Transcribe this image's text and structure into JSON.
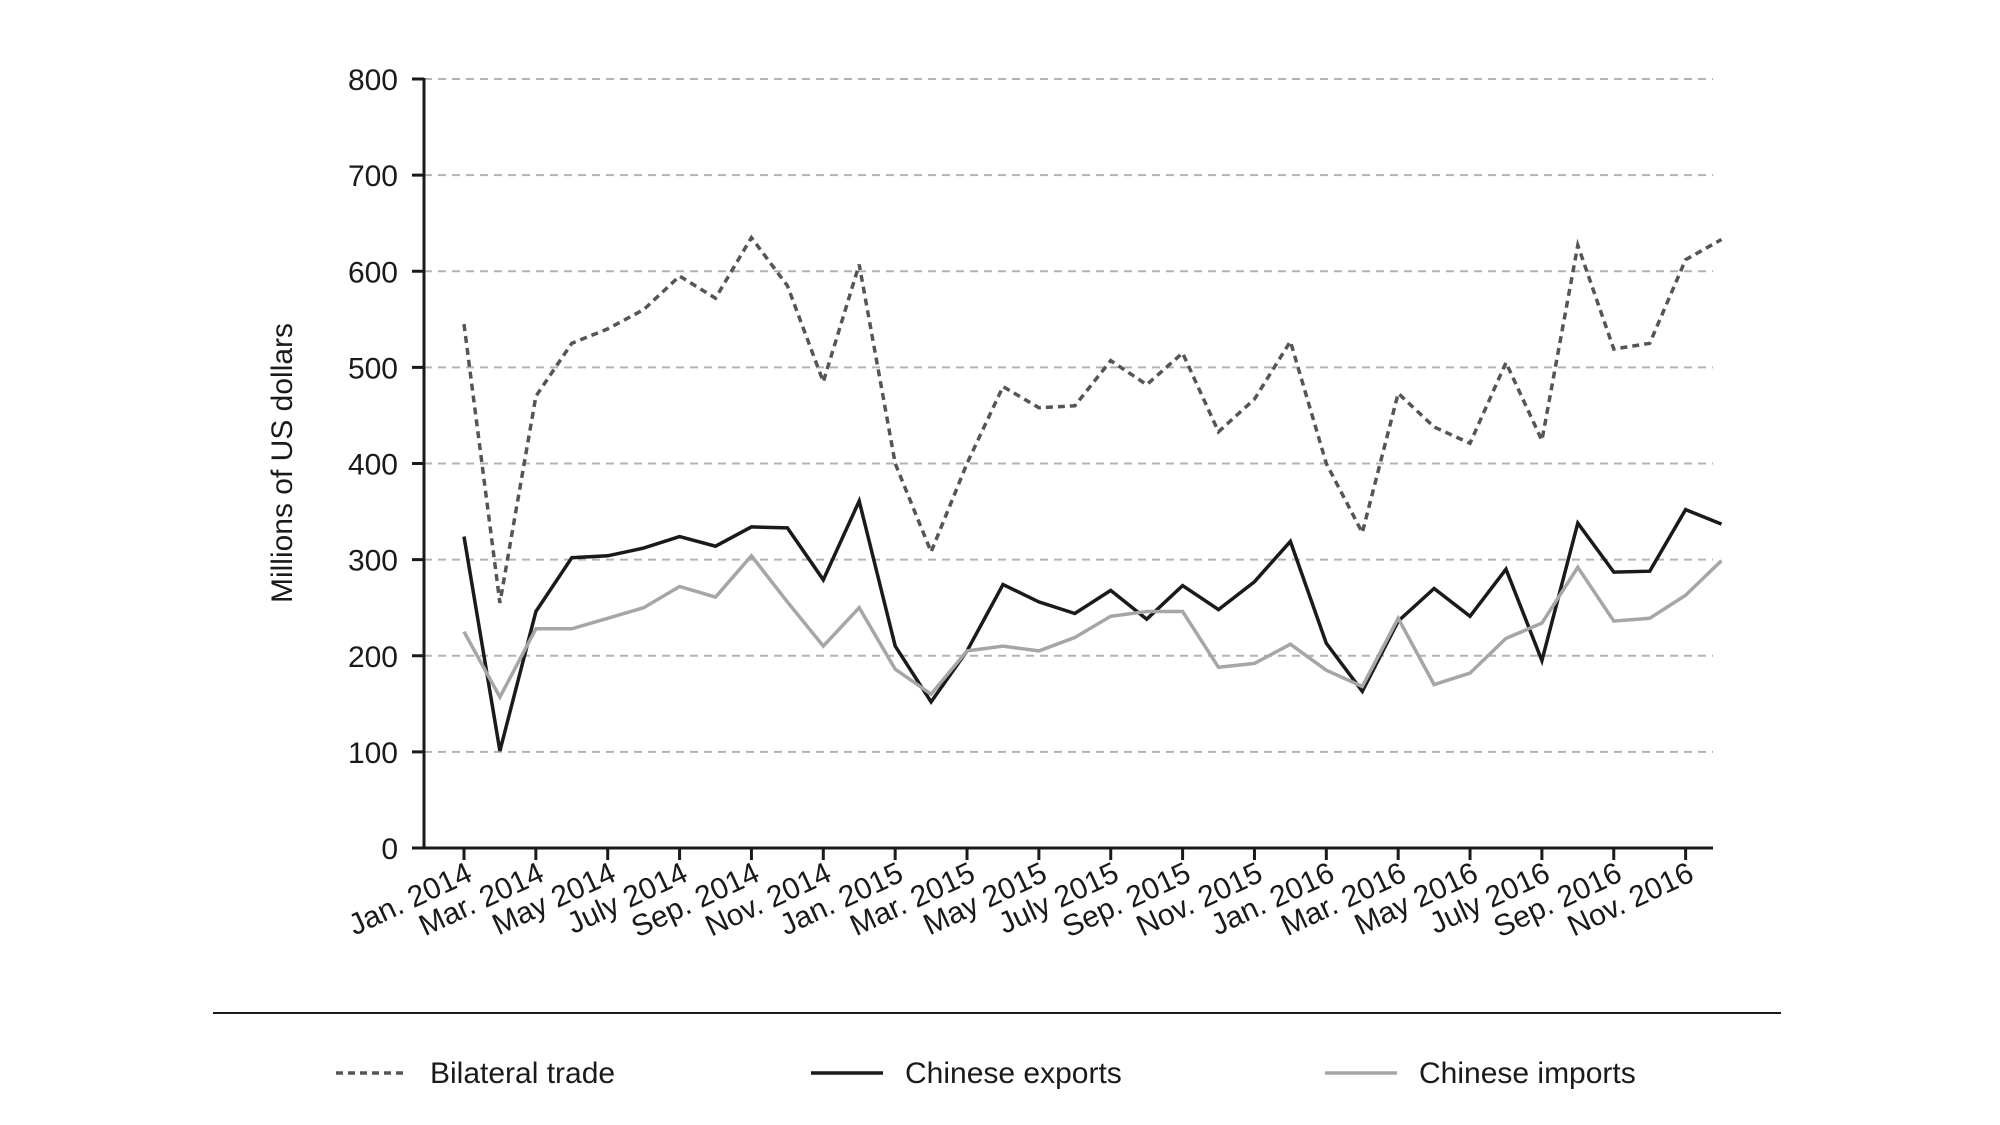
{
  "chart_data": {
    "type": "line",
    "ylabel": "Millions of US dollars",
    "ylim": [
      0,
      800
    ],
    "yticks": [
      0,
      100,
      200,
      300,
      400,
      500,
      600,
      700,
      800
    ],
    "grid": "horizontal dashed",
    "legend_position": "bottom",
    "x": [
      "Jan. 2014",
      "Feb. 2014",
      "Mar. 2014",
      "Apr. 2014",
      "May 2014",
      "June 2014",
      "July 2014",
      "Aug. 2014",
      "Sep. 2014",
      "Oct. 2014",
      "Nov. 2014",
      "Dec. 2014",
      "Jan. 2015",
      "Feb. 2015",
      "Mar. 2015",
      "Apr. 2015",
      "May 2015",
      "June 2015",
      "July 2015",
      "Aug. 2015",
      "Sep. 2015",
      "Oct. 2015",
      "Nov. 2015",
      "Dec. 2015",
      "Jan. 2016",
      "Feb. 2016",
      "Mar. 2016",
      "Apr. 2016",
      "May 2016",
      "June 2016",
      "July 2016",
      "Aug. 2016",
      "Sep. 2016",
      "Oct. 2016",
      "Nov. 2016",
      "Dec. 2016"
    ],
    "x_tick_labels": [
      "Jan. 2014",
      "Mar. 2014",
      "May 2014",
      "July 2014",
      "Sep. 2014",
      "Nov. 2014",
      "Jan. 2015",
      "Mar. 2015",
      "May 2015",
      "July 2015",
      "Sep. 2015",
      "Nov. 2015",
      "Jan. 2016",
      "Mar. 2016",
      "May 2016",
      "July 2016",
      "Sep. 2016",
      "Nov. 2016"
    ],
    "series": [
      {
        "name": "Bilateral trade",
        "color": "#555555",
        "style": "dashed",
        "values": [
          545,
          255,
          470,
          525,
          540,
          560,
          595,
          572,
          635,
          585,
          485,
          607,
          400,
          308,
          400,
          480,
          458,
          460,
          507,
          482,
          515,
          433,
          467,
          527,
          400,
          328,
          473,
          438,
          421,
          505,
          424,
          627,
          519,
          525,
          612,
          633
        ]
      },
      {
        "name": "Chinese exports",
        "color": "#1a1a1a",
        "style": "solid",
        "values": [
          324,
          101,
          246,
          302,
          304,
          312,
          324,
          314,
          334,
          333,
          279,
          361,
          210,
          152,
          205,
          274,
          256,
          244,
          268,
          238,
          273,
          248,
          277,
          319,
          213,
          163,
          236,
          270,
          241,
          290,
          195,
          338,
          287,
          288,
          352,
          337
        ]
      },
      {
        "name": "Chinese imports",
        "color": "#a6a6a6",
        "style": "solid",
        "values": [
          225,
          157,
          228,
          228,
          239,
          250,
          272,
          261,
          304,
          256,
          210,
          250,
          186,
          160,
          205,
          210,
          205,
          219,
          241,
          246,
          246,
          188,
          192,
          212,
          185,
          168,
          239,
          170,
          182,
          218,
          234,
          292,
          236,
          239,
          263,
          299
        ]
      }
    ]
  }
}
